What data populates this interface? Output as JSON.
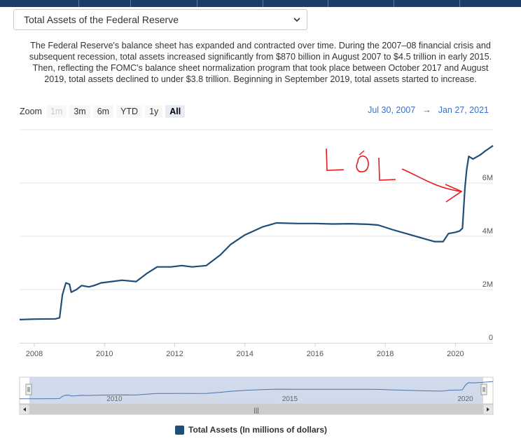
{
  "dataset_select": {
    "selected": "Total Assets of the Federal Reserve"
  },
  "description": "The Federal Reserve's balance sheet has expanded and contracted over time. During the 2007–08 financial crisis and subsequent recession, total assets increased significantly from $870 billion in August 2007 to $4.5 trillion in early 2015. Then, reflecting the FOMC's balance sheet normalization program that took place between October 2017 and August 2019, total assets declined to under $3.8 trillion. Beginning in September 2019, total assets started to increase.",
  "zoom": {
    "label": "Zoom",
    "buttons": [
      {
        "label": "1m",
        "state": "disabled"
      },
      {
        "label": "3m",
        "state": "normal"
      },
      {
        "label": "6m",
        "state": "normal"
      },
      {
        "label": "YTD",
        "state": "normal"
      },
      {
        "label": "1y",
        "state": "normal"
      },
      {
        "label": "All",
        "state": "active"
      }
    ]
  },
  "range": {
    "from": "Jul 30, 2007",
    "arrow": "→",
    "to": "Jan 27, 2021"
  },
  "annotation": {
    "text": "LOL",
    "color": "#e8191d"
  },
  "colors": {
    "series": "#1f4e79",
    "navigator_fill": "#c9d3e8",
    "navigator_line": "#4a74ad",
    "grid": "#e6e6e6"
  },
  "navigator": {
    "labels": [
      "2010",
      "2015",
      "2020"
    ],
    "scroll_grip": "|||"
  },
  "chart_data": {
    "type": "line",
    "title": "",
    "xlabel": "",
    "ylabel": "",
    "xlim": [
      2007.58,
      2021.07
    ],
    "ylim": [
      0,
      8000000
    ],
    "x_ticks": [
      "2008",
      "2010",
      "2012",
      "2014",
      "2016",
      "2018",
      "2020"
    ],
    "y_ticks": [
      "0",
      "2M",
      "4M",
      "6M"
    ],
    "legend_position": "bottom-center",
    "grid": true,
    "series": [
      {
        "name": "Total Assets (In millions of dollars)",
        "x": [
          2007.58,
          2008.0,
          2008.6,
          2008.72,
          2008.8,
          2008.9,
          2009.0,
          2009.05,
          2009.2,
          2009.35,
          2009.55,
          2009.7,
          2009.9,
          2010.2,
          2010.5,
          2010.9,
          2011.2,
          2011.5,
          2011.9,
          2012.2,
          2012.5,
          2012.9,
          2013.3,
          2013.6,
          2014.0,
          2014.5,
          2014.9,
          2015.5,
          2016.0,
          2016.5,
          2017.0,
          2017.5,
          2017.8,
          2018.2,
          2018.6,
          2019.0,
          2019.4,
          2019.65,
          2019.8,
          2020.0,
          2020.12,
          2020.2,
          2020.27,
          2020.32,
          2020.38,
          2020.5,
          2020.7,
          2020.85,
          2021.07
        ],
        "y": [
          870000,
          890000,
          900000,
          940000,
          1800000,
          2250000,
          2200000,
          1900000,
          2000000,
          2150000,
          2100000,
          2150000,
          2250000,
          2300000,
          2350000,
          2300000,
          2600000,
          2850000,
          2850000,
          2900000,
          2850000,
          2900000,
          3300000,
          3700000,
          4050000,
          4350000,
          4500000,
          4480000,
          4480000,
          4460000,
          4470000,
          4450000,
          4420000,
          4250000,
          4100000,
          3950000,
          3800000,
          3800000,
          4100000,
          4150000,
          4200000,
          4300000,
          5800000,
          6500000,
          7000000,
          6900000,
          7050000,
          7200000,
          7400000
        ]
      }
    ]
  }
}
